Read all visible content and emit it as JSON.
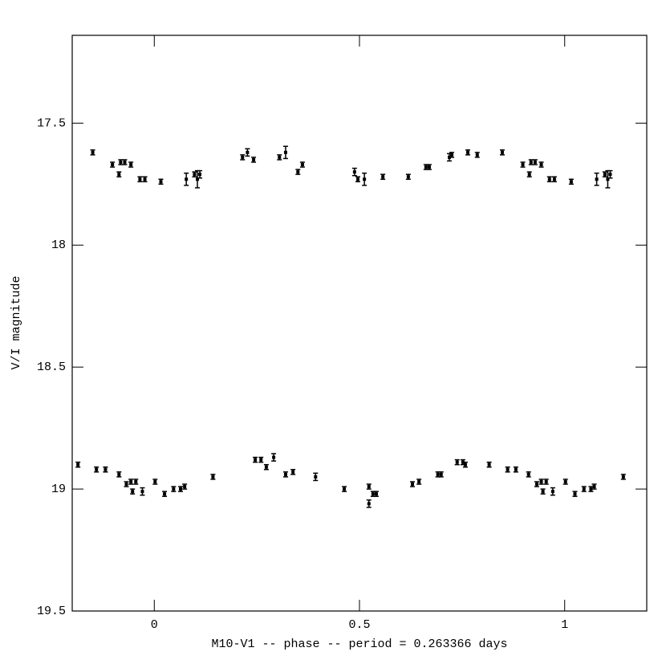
{
  "chart_data": {
    "type": "scatter",
    "xlabel": "M10-V1 -- phase -- period = 0.263366 days",
    "ylabel": "V/I magnitude",
    "xlim": [
      -0.2,
      1.2
    ],
    "ylim": [
      19.5,
      17.14
    ],
    "xticks": [
      0,
      0.5,
      1
    ],
    "yticks": [
      17.5,
      18,
      18.5,
      19,
      19.5
    ],
    "series": [
      {
        "color": "#000000",
        "x": [
          -0.15,
          -0.102,
          -0.086,
          -0.082,
          -0.072,
          -0.057,
          -0.035,
          -0.023,
          0.016,
          0.078,
          0.098,
          0.105,
          0.111,
          0.215,
          0.227,
          0.242,
          0.305,
          0.32,
          0.35,
          0.361,
          0.488,
          0.496,
          0.512,
          0.557,
          0.619,
          0.662,
          0.67,
          0.719,
          0.725,
          0.764,
          0.787,
          0.848,
          0.898,
          0.914,
          0.918,
          0.928,
          0.943,
          0.963,
          0.975,
          1.016,
          1.078,
          1.098,
          1.105,
          1.111
        ],
        "values": [
          17.62,
          17.67,
          17.71,
          17.66,
          17.66,
          17.67,
          17.73,
          17.73,
          17.74,
          17.73,
          17.71,
          17.73,
          17.71,
          17.64,
          17.62,
          17.65,
          17.64,
          17.62,
          17.7,
          17.67,
          17.7,
          17.73,
          17.73,
          17.72,
          17.72,
          17.68,
          17.68,
          17.64,
          17.63,
          17.62,
          17.63,
          17.62,
          17.67,
          17.71,
          17.66,
          17.66,
          17.67,
          17.73,
          17.73,
          17.74,
          17.73,
          17.71,
          17.73,
          17.71
        ],
        "errors": [
          0.01,
          0.01,
          0.01,
          0.01,
          0.01,
          0.01,
          0.01,
          0.01,
          0.01,
          0.025,
          0.01,
          0.035,
          0.015,
          0.01,
          0.015,
          0.01,
          0.01,
          0.025,
          0.01,
          0.01,
          0.015,
          0.01,
          0.025,
          0.01,
          0.01,
          0.01,
          0.01,
          0.015,
          0.01,
          0.01,
          0.01,
          0.01,
          0.01,
          0.01,
          0.01,
          0.01,
          0.01,
          0.01,
          0.01,
          0.01,
          0.025,
          0.01,
          0.035,
          0.015
        ]
      },
      {
        "color": "#000000",
        "x": [
          -0.186,
          -0.141,
          -0.119,
          -0.086,
          -0.068,
          -0.057,
          -0.053,
          -0.045,
          -0.029,
          0.002,
          0.025,
          0.047,
          0.064,
          0.074,
          0.143,
          0.246,
          0.26,
          0.273,
          0.291,
          0.32,
          0.338,
          0.393,
          0.463,
          0.523,
          0.523,
          0.533,
          0.541,
          0.629,
          0.645,
          0.691,
          0.699,
          0.738,
          0.752,
          0.758,
          0.816,
          0.861,
          0.881,
          0.912,
          0.932,
          0.943,
          0.947,
          0.955,
          0.971,
          1.002,
          1.025,
          1.047,
          1.064,
          1.072,
          1.143
        ],
        "values": [
          18.9,
          18.92,
          18.92,
          18.94,
          18.98,
          18.97,
          19.01,
          18.97,
          19.01,
          18.97,
          19.02,
          19.0,
          19.0,
          18.99,
          18.95,
          18.88,
          18.88,
          18.91,
          18.87,
          18.94,
          18.93,
          18.95,
          19.0,
          18.99,
          19.06,
          19.02,
          19.02,
          18.98,
          18.97,
          18.94,
          18.94,
          18.89,
          18.89,
          18.9,
          18.9,
          18.92,
          18.92,
          18.94,
          18.98,
          18.97,
          19.01,
          18.97,
          19.01,
          18.97,
          19.02,
          19.0,
          19.0,
          18.99,
          18.95
        ],
        "errors": [
          0.01,
          0.01,
          0.01,
          0.01,
          0.01,
          0.01,
          0.01,
          0.01,
          0.015,
          0.01,
          0.01,
          0.01,
          0.01,
          0.01,
          0.01,
          0.01,
          0.01,
          0.01,
          0.015,
          0.01,
          0.01,
          0.015,
          0.01,
          0.01,
          0.015,
          0.01,
          0.01,
          0.01,
          0.01,
          0.01,
          0.01,
          0.01,
          0.01,
          0.01,
          0.01,
          0.01,
          0.01,
          0.01,
          0.01,
          0.01,
          0.01,
          0.01,
          0.015,
          0.01,
          0.01,
          0.01,
          0.01,
          0.01,
          0.01
        ]
      }
    ]
  }
}
